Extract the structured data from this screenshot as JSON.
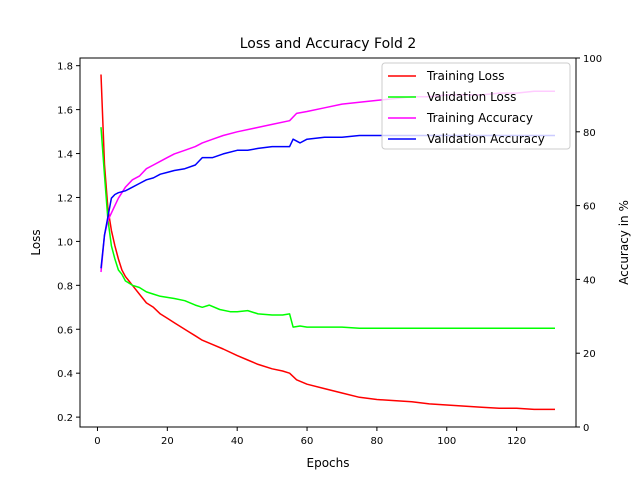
{
  "chart_data": {
    "type": "line",
    "title": "Loss and Accuracy Fold 2",
    "xlabel": "Epochs",
    "ylabel": "Loss",
    "y2label": "Accuracy in %",
    "xlim": [
      -5,
      137
    ],
    "ylim": [
      0.155,
      1.835
    ],
    "y2lim": [
      0,
      100
    ],
    "xticks": [
      0,
      20,
      40,
      60,
      80,
      100,
      120
    ],
    "yticks": [
      0.2,
      0.4,
      0.6,
      0.8,
      1.0,
      1.2,
      1.4,
      1.6,
      1.8
    ],
    "yticklabels": [
      "0.2",
      "0.4",
      "0.6",
      "0.8",
      "1.0",
      "1.2",
      "1.4",
      "1.6",
      "1.8"
    ],
    "y2ticks": [
      0,
      20,
      40,
      60,
      80,
      100
    ],
    "grid": false,
    "legend": "top-right",
    "series": [
      {
        "name": "Training Loss",
        "axis": "left",
        "color": "#ff0000",
        "points": [
          [
            1,
            1.76
          ],
          [
            2,
            1.35
          ],
          [
            3,
            1.15
          ],
          [
            4,
            1.05
          ],
          [
            5,
            0.98
          ],
          [
            6,
            0.92
          ],
          [
            7,
            0.87
          ],
          [
            8,
            0.84
          ],
          [
            9,
            0.82
          ],
          [
            10,
            0.8
          ],
          [
            12,
            0.76
          ],
          [
            14,
            0.72
          ],
          [
            16,
            0.7
          ],
          [
            18,
            0.67
          ],
          [
            20,
            0.65
          ],
          [
            22,
            0.63
          ],
          [
            24,
            0.61
          ],
          [
            26,
            0.59
          ],
          [
            28,
            0.57
          ],
          [
            30,
            0.55
          ],
          [
            33,
            0.53
          ],
          [
            36,
            0.51
          ],
          [
            40,
            0.48
          ],
          [
            43,
            0.46
          ],
          [
            46,
            0.44
          ],
          [
            50,
            0.42
          ],
          [
            53,
            0.41
          ],
          [
            55,
            0.4
          ],
          [
            57,
            0.37
          ],
          [
            60,
            0.35
          ],
          [
            65,
            0.33
          ],
          [
            70,
            0.31
          ],
          [
            75,
            0.29
          ],
          [
            80,
            0.28
          ],
          [
            85,
            0.275
          ],
          [
            90,
            0.27
          ],
          [
            95,
            0.26
          ],
          [
            100,
            0.255
          ],
          [
            105,
            0.25
          ],
          [
            110,
            0.245
          ],
          [
            115,
            0.24
          ],
          [
            120,
            0.24
          ],
          [
            125,
            0.235
          ],
          [
            131,
            0.235
          ]
        ]
      },
      {
        "name": "Validation Loss",
        "axis": "left",
        "color": "#00ff00",
        "points": [
          [
            1,
            1.52
          ],
          [
            2,
            1.3
          ],
          [
            3,
            1.1
          ],
          [
            4,
            0.98
          ],
          [
            5,
            0.92
          ],
          [
            6,
            0.87
          ],
          [
            7,
            0.85
          ],
          [
            8,
            0.82
          ],
          [
            10,
            0.8
          ],
          [
            12,
            0.79
          ],
          [
            14,
            0.77
          ],
          [
            16,
            0.76
          ],
          [
            18,
            0.75
          ],
          [
            20,
            0.745
          ],
          [
            22,
            0.74
          ],
          [
            25,
            0.73
          ],
          [
            28,
            0.71
          ],
          [
            30,
            0.7
          ],
          [
            32,
            0.71
          ],
          [
            35,
            0.69
          ],
          [
            38,
            0.68
          ],
          [
            40,
            0.68
          ],
          [
            43,
            0.685
          ],
          [
            46,
            0.67
          ],
          [
            50,
            0.665
          ],
          [
            53,
            0.665
          ],
          [
            55,
            0.67
          ],
          [
            56,
            0.61
          ],
          [
            58,
            0.615
          ],
          [
            60,
            0.61
          ],
          [
            65,
            0.61
          ],
          [
            70,
            0.61
          ],
          [
            75,
            0.605
          ],
          [
            80,
            0.605
          ],
          [
            90,
            0.605
          ],
          [
            100,
            0.605
          ],
          [
            110,
            0.605
          ],
          [
            120,
            0.605
          ],
          [
            131,
            0.605
          ]
        ]
      },
      {
        "name": "Training Accuracy",
        "axis": "right",
        "color": "#ff00ff",
        "points": [
          [
            1,
            42
          ],
          [
            2,
            52
          ],
          [
            3,
            56
          ],
          [
            4,
            58
          ],
          [
            5,
            60
          ],
          [
            6,
            62
          ],
          [
            8,
            65
          ],
          [
            10,
            67
          ],
          [
            12,
            68
          ],
          [
            14,
            70
          ],
          [
            16,
            71
          ],
          [
            18,
            72
          ],
          [
            20,
            73
          ],
          [
            22,
            74
          ],
          [
            25,
            75
          ],
          [
            28,
            76
          ],
          [
            30,
            77
          ],
          [
            33,
            78
          ],
          [
            36,
            79
          ],
          [
            40,
            80
          ],
          [
            45,
            81
          ],
          [
            50,
            82
          ],
          [
            55,
            83
          ],
          [
            57,
            85
          ],
          [
            60,
            85.5
          ],
          [
            65,
            86.5
          ],
          [
            70,
            87.5
          ],
          [
            75,
            88
          ],
          [
            80,
            88.5
          ],
          [
            85,
            89
          ],
          [
            90,
            89.5
          ],
          [
            95,
            89.5
          ],
          [
            100,
            90
          ],
          [
            105,
            90
          ],
          [
            110,
            90
          ],
          [
            115,
            90.5
          ],
          [
            120,
            90.5
          ],
          [
            125,
            91
          ],
          [
            131,
            91
          ]
        ]
      },
      {
        "name": "Validation Accuracy",
        "axis": "right",
        "color": "#0000ff",
        "points": [
          [
            1,
            43
          ],
          [
            2,
            52
          ],
          [
            3,
            57
          ],
          [
            4,
            62
          ],
          [
            5,
            63
          ],
          [
            6,
            63.5
          ],
          [
            8,
            64
          ],
          [
            10,
            65
          ],
          [
            12,
            66
          ],
          [
            14,
            67
          ],
          [
            16,
            67.5
          ],
          [
            18,
            68.5
          ],
          [
            20,
            69
          ],
          [
            22,
            69.5
          ],
          [
            25,
            70
          ],
          [
            28,
            71
          ],
          [
            30,
            73
          ],
          [
            33,
            73
          ],
          [
            36,
            74
          ],
          [
            40,
            75
          ],
          [
            43,
            75
          ],
          [
            46,
            75.5
          ],
          [
            50,
            76
          ],
          [
            53,
            76
          ],
          [
            55,
            76
          ],
          [
            56,
            78
          ],
          [
            58,
            77
          ],
          [
            60,
            78
          ],
          [
            65,
            78.5
          ],
          [
            70,
            78.5
          ],
          [
            75,
            79
          ],
          [
            80,
            79
          ],
          [
            85,
            79
          ],
          [
            90,
            79
          ],
          [
            95,
            79
          ],
          [
            100,
            79
          ],
          [
            110,
            79
          ],
          [
            120,
            79
          ],
          [
            131,
            79
          ]
        ]
      }
    ]
  }
}
